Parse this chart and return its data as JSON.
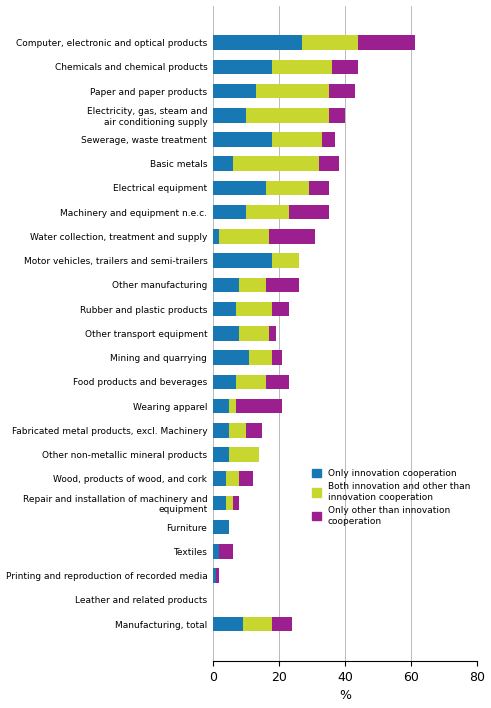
{
  "categories": [
    "Computer, electronic and optical products",
    "Chemicals and chemical products",
    "Paper and paper products",
    "Electricity, gas, steam and\nair conditioning supply",
    "Sewerage, waste treatment",
    "Basic metals",
    "Electrical equipment",
    "Machinery and equipment n.e.c.",
    "Water collection, treatment and supply",
    "Motor vehicles, trailers and semi-trailers",
    "Other manufacturing",
    "Rubber and plastic products",
    "Other transport equipment",
    "Mining and quarrying",
    "Food products and beverages",
    "Wearing apparel",
    "Fabricated metal products, excl. Machinery",
    "Other non-metallic mineral products",
    "Wood, products of wood, and cork",
    "Repair and installation of machinery and\nequipment",
    "Furniture",
    "Textiles",
    "Printing and reproduction of recorded media",
    "Leather and related products",
    "Manufacturing, total"
  ],
  "only_innovation": [
    27,
    18,
    13,
    10,
    18,
    6,
    16,
    10,
    2,
    18,
    8,
    7,
    8,
    11,
    7,
    5,
    5,
    5,
    4,
    4,
    5,
    2,
    1,
    0,
    9
  ],
  "both": [
    17,
    18,
    22,
    25,
    15,
    26,
    13,
    13,
    15,
    8,
    8,
    11,
    9,
    7,
    9,
    2,
    5,
    9,
    4,
    2,
    0,
    0,
    0,
    0,
    9
  ],
  "only_other": [
    17,
    8,
    8,
    5,
    4,
    6,
    6,
    12,
    14,
    0,
    10,
    5,
    2,
    3,
    7,
    14,
    5,
    0,
    4,
    2,
    0,
    4,
    1,
    0,
    6
  ],
  "color_innovation": "#1878b4",
  "color_both": "#c8d630",
  "color_only_other": "#9b1f8e",
  "xlabel": "%",
  "xlim": [
    0,
    80
  ],
  "xticks": [
    0,
    20,
    40,
    60,
    80
  ],
  "legend_labels": [
    "Only innovation cooperation",
    "Both innovation and other than\ninnovation cooperation",
    "Only other than innovation\ncooperation"
  ]
}
